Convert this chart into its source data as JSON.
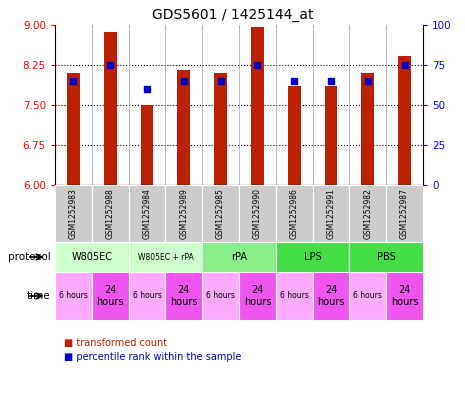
{
  "title": "GDS5601 / 1425144_at",
  "samples": [
    "GSM1252983",
    "GSM1252988",
    "GSM1252984",
    "GSM1252989",
    "GSM1252985",
    "GSM1252990",
    "GSM1252986",
    "GSM1252991",
    "GSM1252982",
    "GSM1252987"
  ],
  "bar_values": [
    8.1,
    8.87,
    7.5,
    8.15,
    8.1,
    8.97,
    7.85,
    7.85,
    8.1,
    8.42
  ],
  "dot_percentiles": [
    65,
    75,
    60,
    65,
    65,
    75,
    65,
    65,
    65,
    75
  ],
  "ylim_left": [
    6,
    9
  ],
  "ylim_right": [
    0,
    100
  ],
  "yticks_left": [
    6,
    6.75,
    7.5,
    8.25,
    9
  ],
  "yticks_right": [
    0,
    25,
    50,
    75,
    100
  ],
  "bar_color": "#bb2000",
  "dot_color": "#0000cc",
  "protocols": [
    {
      "label": "W805EC",
      "span": [
        0,
        2
      ],
      "color": "#ccffcc"
    },
    {
      "label": "W805EC + rPA",
      "span": [
        2,
        4
      ],
      "color": "#ccffcc"
    },
    {
      "label": "rPA",
      "span": [
        4,
        6
      ],
      "color": "#88ee88"
    },
    {
      "label": "LPS",
      "span": [
        6,
        8
      ],
      "color": "#44dd44"
    },
    {
      "label": "PBS",
      "span": [
        8,
        10
      ],
      "color": "#44dd44"
    }
  ],
  "times": [
    "6 hours",
    "24\nhours",
    "6 hours",
    "24\nhours",
    "6 hours",
    "24\nhours",
    "6 hours",
    "24\nhours",
    "6 hours",
    "24\nhours"
  ],
  "time_colors": [
    "#ffaaff",
    "#ee55ee",
    "#ffaaff",
    "#ee55ee",
    "#ffaaff",
    "#ee55ee",
    "#ffaaff",
    "#ee55ee",
    "#ffaaff",
    "#ee55ee"
  ],
  "protocol_label": "protocol",
  "time_label": "time",
  "legend_bar_label": "transformed count",
  "legend_dot_label": "percentile rank within the sample",
  "sample_bg_color": "#cccccc",
  "bar_width": 0.35
}
